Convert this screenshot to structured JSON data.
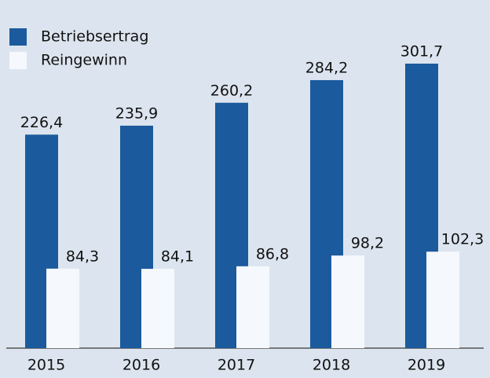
{
  "chart_data": {
    "type": "bar",
    "categories": [
      "2015",
      "2016",
      "2017",
      "2018",
      "2019"
    ],
    "series": [
      {
        "name": "Betriebsertrag",
        "color": "#1b5a9d",
        "values": [
          226.4,
          235.9,
          260.2,
          284.2,
          301.7
        ],
        "value_labels": [
          "226,4",
          "235,9",
          "260,2",
          "284,2",
          "301,7"
        ]
      },
      {
        "name": "Reingewinn",
        "color": "#f5f8fc",
        "values": [
          84.3,
          84.1,
          86.8,
          98.2,
          102.3
        ],
        "value_labels": [
          "84,3",
          "84,1",
          "86,8",
          "98,2",
          "102,3"
        ]
      }
    ],
    "ylim": [
      0,
      360
    ],
    "legend": "upper left"
  }
}
